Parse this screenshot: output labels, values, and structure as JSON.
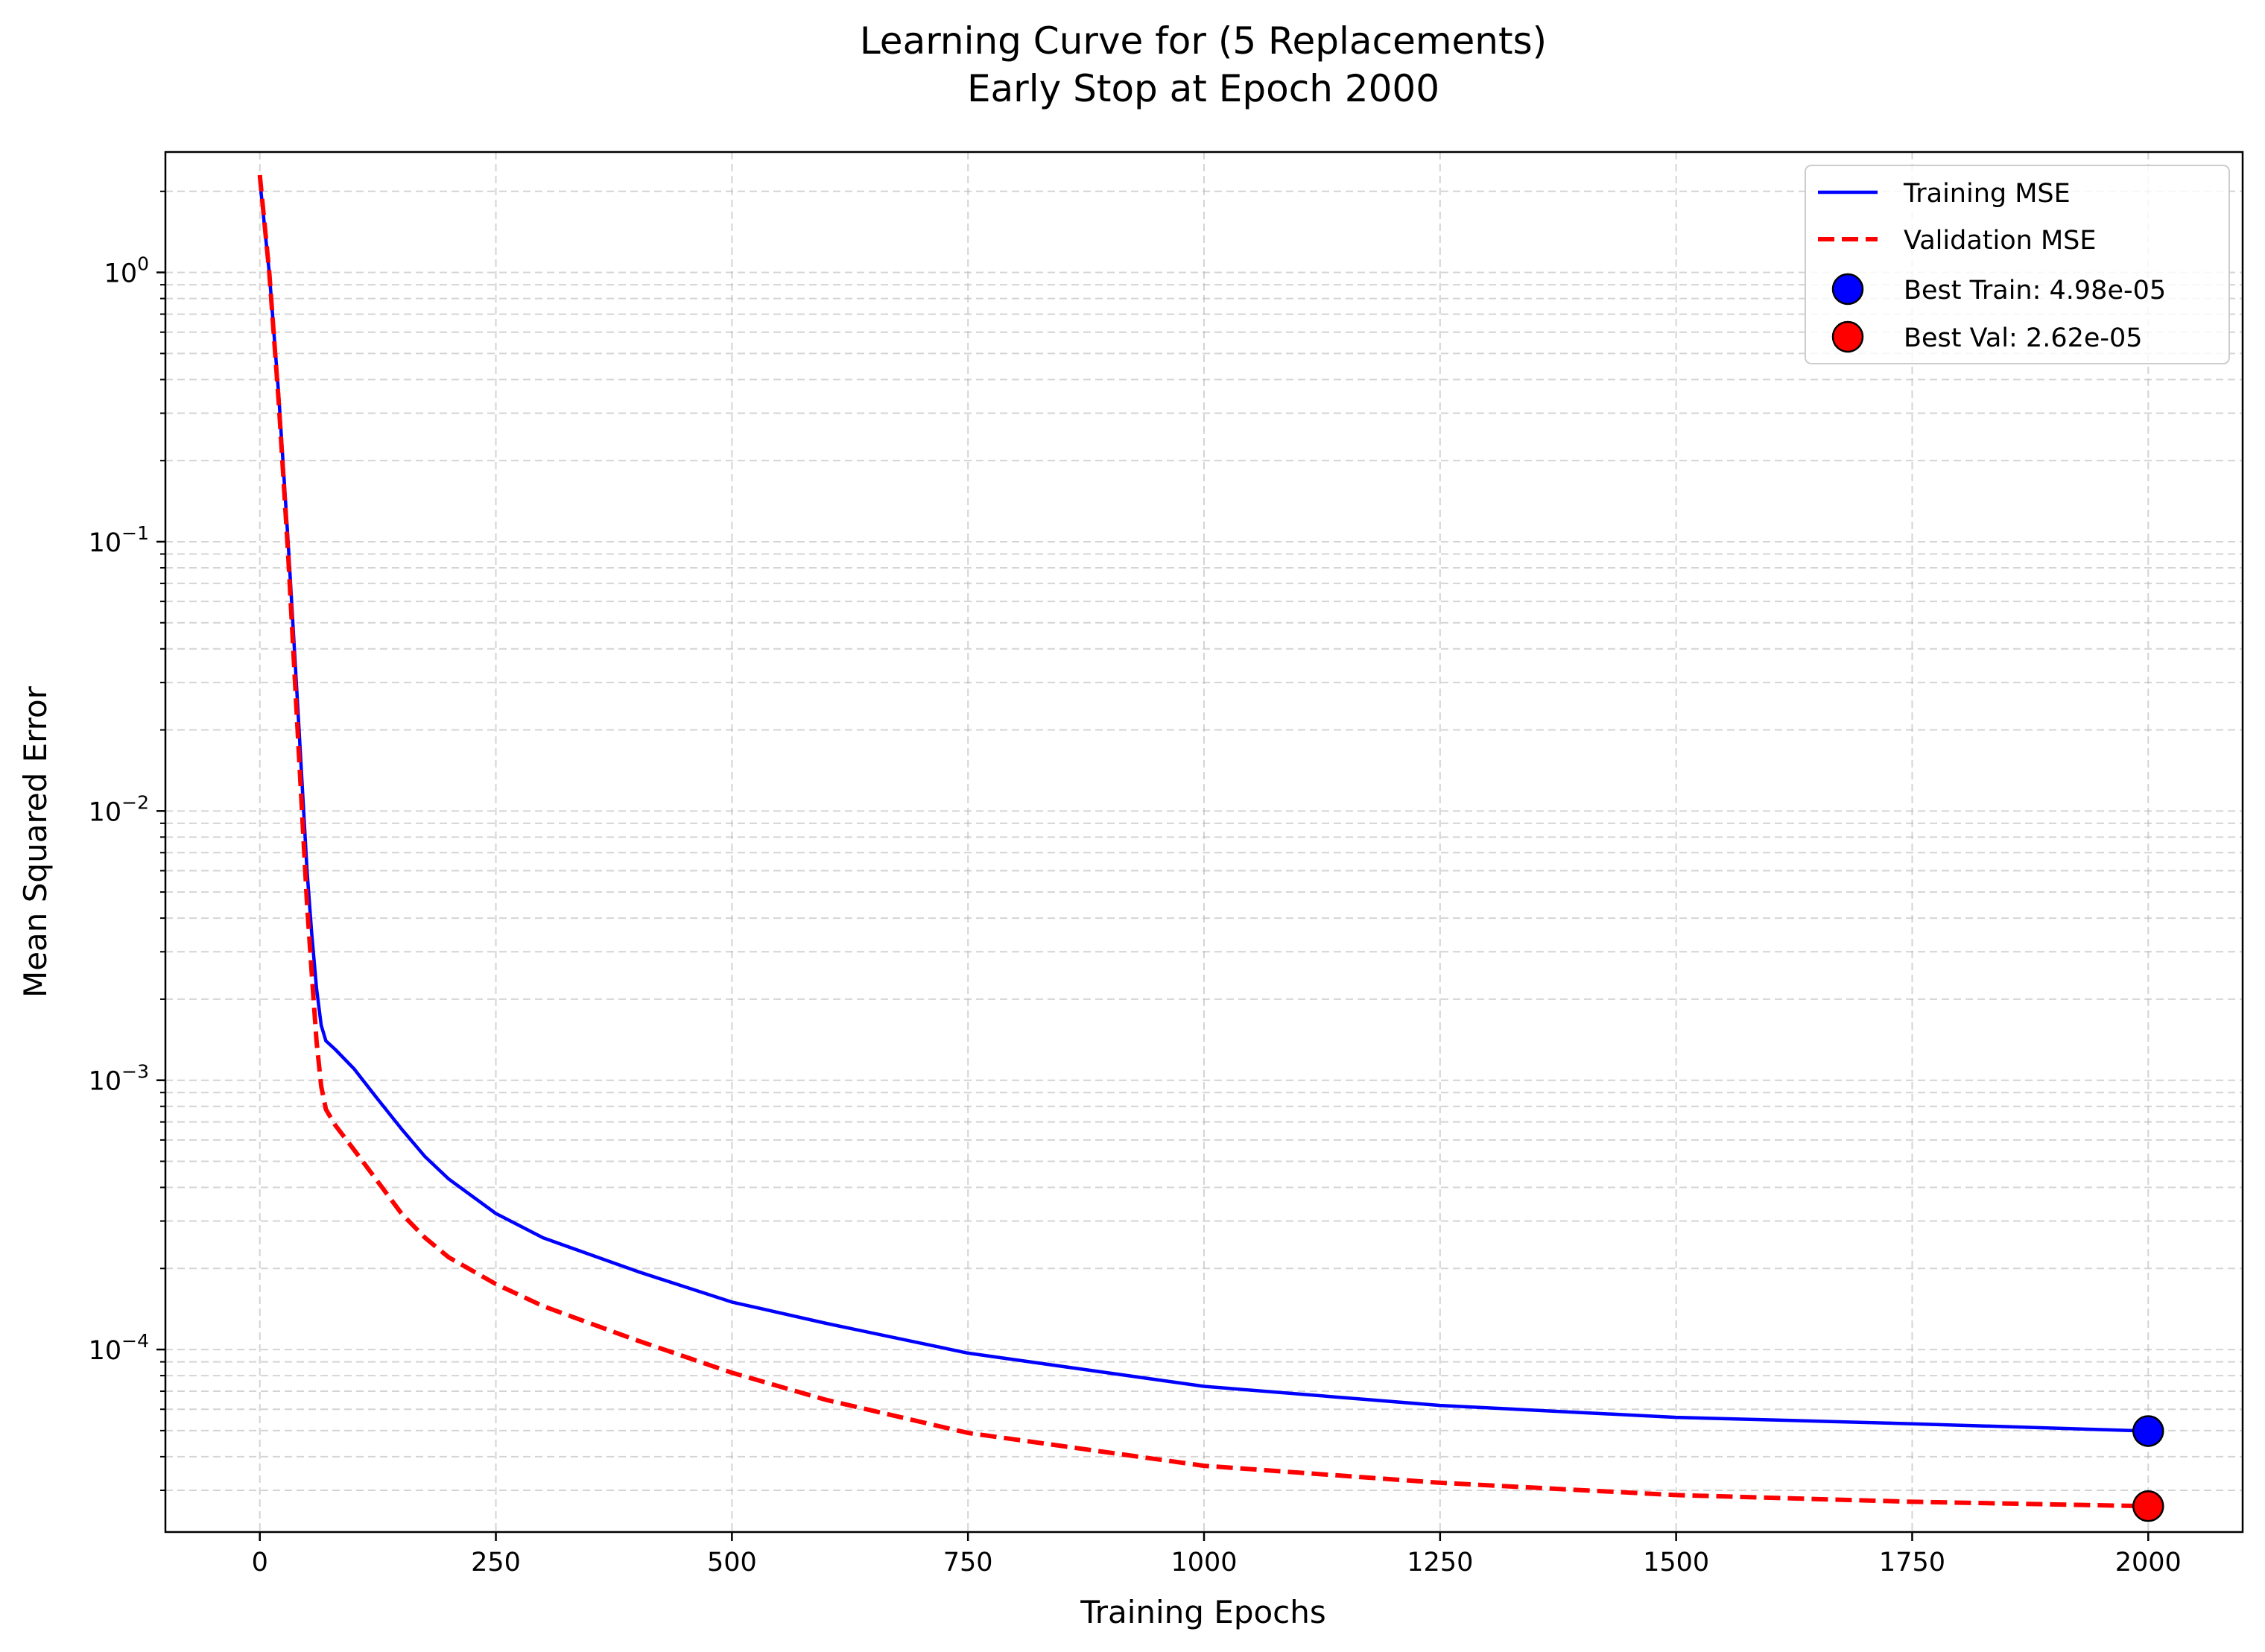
{
  "chart_data": {
    "type": "line",
    "title_lines": [
      "Learning Curve for (5 Replacements)",
      "Early Stop at Epoch 2000"
    ],
    "xlabel": "Training Epochs",
    "ylabel": "Mean Squared Error",
    "xlim": [
      -100,
      2100
    ],
    "ylim": [
      2.1e-05,
      2.8
    ],
    "yscale": "log",
    "grid": true,
    "legend_position": "top-right",
    "x_ticks": [
      {
        "value": 0,
        "label": "0"
      },
      {
        "value": 250,
        "label": "250"
      },
      {
        "value": 500,
        "label": "500"
      },
      {
        "value": 750,
        "label": "750"
      },
      {
        "value": 1000,
        "label": "1000"
      },
      {
        "value": 1250,
        "label": "1250"
      },
      {
        "value": 1500,
        "label": "1500"
      },
      {
        "value": 1750,
        "label": "1750"
      },
      {
        "value": 2000,
        "label": "2000"
      }
    ],
    "y_ticks": [
      {
        "value": 1,
        "base": "10",
        "exp": "0"
      },
      {
        "value": 0.1,
        "base": "10",
        "exp": "−1"
      },
      {
        "value": 0.01,
        "base": "10",
        "exp": "−2"
      },
      {
        "value": 0.001,
        "base": "10",
        "exp": "−3"
      },
      {
        "value": 0.0001,
        "base": "10",
        "exp": "−4"
      }
    ],
    "series": [
      {
        "name": "Training MSE",
        "color": "#0000ff",
        "style": "solid",
        "x": [
          0,
          10,
          20,
          30,
          40,
          50,
          55,
          60,
          65,
          70,
          80,
          100,
          125,
          150,
          175,
          200,
          250,
          300,
          350,
          400,
          500,
          600,
          750,
          1000,
          1250,
          1500,
          1750,
          2000
        ],
        "y": [
          2.2,
          1.0,
          0.35,
          0.1,
          0.025,
          0.006,
          0.0035,
          0.0022,
          0.0016,
          0.0014,
          0.0013,
          0.0011,
          0.00085,
          0.00066,
          0.00052,
          0.00043,
          0.00032,
          0.00026,
          0.000225,
          0.000195,
          0.00015,
          0.000125,
          9.7e-05,
          7.3e-05,
          6.2e-05,
          5.6e-05,
          5.3e-05,
          4.98e-05
        ]
      },
      {
        "name": "Validation MSE",
        "color": "#ff0000",
        "style": "dashed",
        "x": [
          0,
          10,
          20,
          30,
          40,
          50,
          55,
          60,
          65,
          70,
          80,
          100,
          125,
          150,
          175,
          200,
          250,
          300,
          350,
          400,
          500,
          600,
          750,
          1000,
          1250,
          1500,
          1750,
          2000
        ],
        "y": [
          2.3,
          1.0,
          0.33,
          0.09,
          0.02,
          0.0045,
          0.0025,
          0.0014,
          0.00095,
          0.00078,
          0.00068,
          0.00055,
          0.00042,
          0.00032,
          0.00026,
          0.00022,
          0.000175,
          0.000145,
          0.000125,
          0.000108,
          8.2e-05,
          6.5e-05,
          4.9e-05,
          3.7e-05,
          3.2e-05,
          2.88e-05,
          2.72e-05,
          2.62e-05
        ]
      }
    ],
    "markers": [
      {
        "name": "Best Train: 4.98e-05",
        "x": 2000,
        "y": 4.98e-05,
        "color": "#0000ff"
      },
      {
        "name": "Best Val: 2.62e-05",
        "x": 2000,
        "y": 2.62e-05,
        "color": "#ff0000"
      }
    ]
  }
}
